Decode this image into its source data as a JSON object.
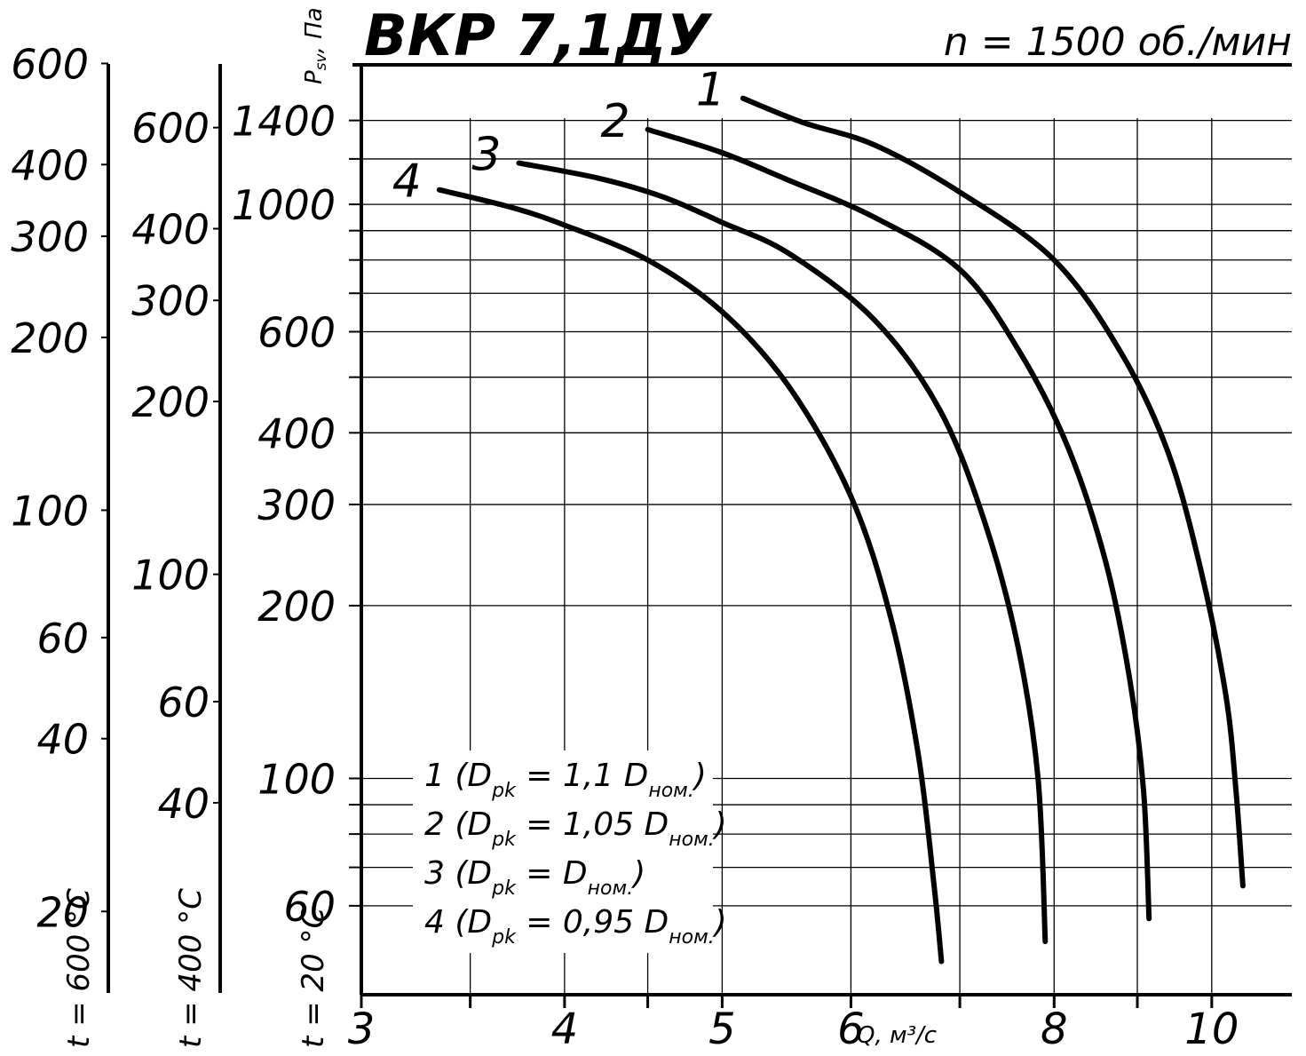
{
  "chart_data": {
    "type": "line",
    "title": "ВКР 7,1ДУ",
    "subtitle": "n = 1500 об./мин",
    "xlabel": "Q, м³/с",
    "ylabel": "P",
    "ylabel_subscript": "sv",
    "ylabel_unit": ", Па",
    "x_scale": "log",
    "y_scale": "log",
    "xlim": [
      3,
      11.2
    ],
    "ylim": [
      42,
      1750
    ],
    "x_ticks": [
      3,
      4,
      5,
      6,
      8,
      10
    ],
    "x_minor": [
      3.5,
      4.5,
      7,
      9
    ],
    "y_ticks": [
      60,
      100,
      200,
      300,
      400,
      600,
      1000,
      1400
    ],
    "grid": true,
    "series": [
      {
        "name": "1",
        "points": [
          [
            5.15,
            1530
          ],
          [
            5.6,
            1390
          ],
          [
            6.2,
            1270
          ],
          [
            7.0,
            1050
          ],
          [
            8.0,
            800
          ],
          [
            8.8,
            550
          ],
          [
            9.4,
            370
          ],
          [
            9.85,
            230
          ],
          [
            10.2,
            140
          ],
          [
            10.35,
            95
          ],
          [
            10.45,
            65
          ]
        ]
      },
      {
        "name": "2",
        "points": [
          [
            4.5,
            1350
          ],
          [
            5.0,
            1230
          ],
          [
            5.5,
            1100
          ],
          [
            6.2,
            950
          ],
          [
            7.0,
            770
          ],
          [
            7.6,
            560
          ],
          [
            8.15,
            380
          ],
          [
            8.6,
            240
          ],
          [
            8.9,
            150
          ],
          [
            9.08,
            95
          ],
          [
            9.15,
            57
          ]
        ]
      },
      {
        "name": "3",
        "points": [
          [
            3.75,
            1180
          ],
          [
            4.2,
            1110
          ],
          [
            4.6,
            1030
          ],
          [
            5.0,
            930
          ],
          [
            5.5,
            820
          ],
          [
            6.2,
            630
          ],
          [
            6.8,
            440
          ],
          [
            7.25,
            280
          ],
          [
            7.6,
            170
          ],
          [
            7.82,
            100
          ],
          [
            7.9,
            52
          ]
        ]
      },
      {
        "name": "4",
        "points": [
          [
            3.35,
            1060
          ],
          [
            3.7,
            990
          ],
          [
            4.0,
            920
          ],
          [
            4.5,
            800
          ],
          [
            5.0,
            650
          ],
          [
            5.5,
            480
          ],
          [
            6.0,
            310
          ],
          [
            6.35,
            190
          ],
          [
            6.6,
            110
          ],
          [
            6.75,
            65
          ],
          [
            6.82,
            48
          ]
        ]
      }
    ],
    "legend": [
      {
        "num": "1",
        "head": " (D",
        "sub": "pk",
        "mid": " = 1,1 D",
        "sub2": "ном.",
        "tail": ")"
      },
      {
        "num": "2",
        "head": " (D",
        "sub": "pk",
        "mid": " = 1,05 D",
        "sub2": "ном.",
        "tail": ")"
      },
      {
        "num": "3",
        "head": " (D",
        "sub": "pk",
        "mid": " = D",
        "sub2": "ном.",
        "tail": ")"
      },
      {
        "num": "4",
        "head": " (D",
        "sub": "pk",
        "mid": " = 0,95 D",
        "sub2": "ном.",
        "tail": ")"
      }
    ],
    "legend_position": "bottom-left",
    "temperature_scales": [
      {
        "label": "t = 20 °С",
        "ticks": [
          60,
          100,
          200,
          300,
          400,
          600,
          1000,
          1400
        ]
      },
      {
        "label": "t = 400 °С",
        "factor": 0.441,
        "ticks": [
          40,
          60,
          100,
          200,
          300,
          400,
          600
        ]
      },
      {
        "label": "t = 600 °С",
        "factor": 0.341,
        "ticks": [
          20,
          40,
          60,
          100,
          200,
          300,
          400,
          600
        ]
      }
    ]
  }
}
